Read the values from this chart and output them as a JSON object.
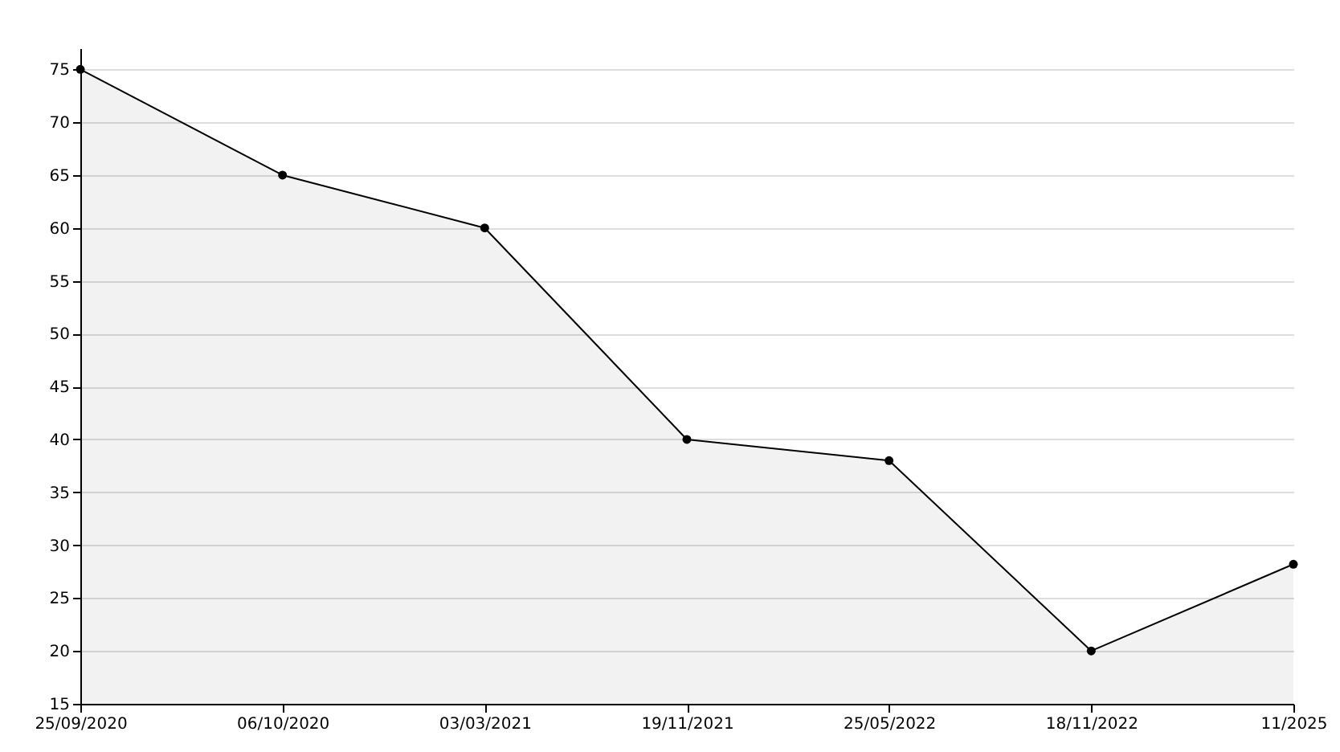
{
  "chart_data": {
    "type": "area",
    "categories": [
      "25/09/2020",
      "06/10/2020",
      "03/03/2021",
      "19/11/2021",
      "25/05/2022",
      "18/11/2022",
      "11/2025"
    ],
    "series": [
      {
        "color": "#000000",
        "values": [
          75,
          65,
          60,
          40,
          38,
          20,
          28.2
        ]
      }
    ],
    "ylim": [
      15,
      77
    ],
    "yticks": [
      15,
      20,
      25,
      30,
      35,
      40,
      45,
      50,
      55,
      60,
      65,
      70,
      75
    ],
    "grid": "y",
    "marker": "circle",
    "legend": false
  }
}
